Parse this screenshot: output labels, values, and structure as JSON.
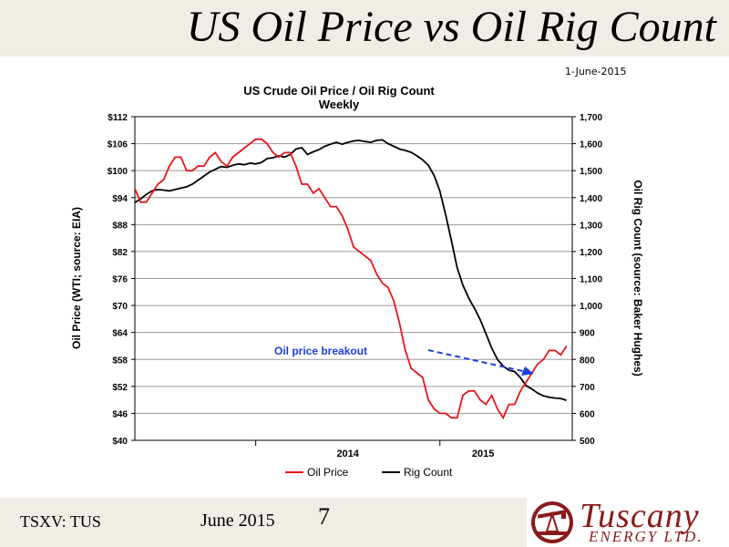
{
  "slide": {
    "title": "US Oil Price vs Oil Rig Count",
    "date": "1-June-2015",
    "footer_ticker": "TSXV: TUS",
    "footer_date": "June 2015",
    "page_number": "7",
    "logo_name": "Tuscany",
    "logo_sub": "ENERGY LTD."
  },
  "colors": {
    "oil": "#e8141b",
    "rig": "#000000",
    "arrow": "#1a3fdb",
    "annotation": "#1a3fdb",
    "band": "#f2ece6",
    "logo": "#8a1a1a"
  },
  "chart_data": {
    "type": "line",
    "title": "US Crude Oil Price / Oil Rig Count",
    "subtitle": "Weekly",
    "ylabel": "Oil Price (WTI; source: EIA)",
    "y2label": "Oil Rig Count (source: Baker Hughes)",
    "xlabel": "",
    "x_tick_labels": [
      "2014",
      "2015"
    ],
    "x_range": [
      0,
      76
    ],
    "x_year_boundaries": [
      21,
      53
    ],
    "ylim": [
      40,
      112
    ],
    "y2lim": [
      500,
      1700
    ],
    "y_ticks": [
      "$40",
      "$46",
      "$52",
      "$58",
      "$64",
      "$70",
      "$76",
      "$82",
      "$88",
      "$94",
      "$100",
      "$106",
      "$112"
    ],
    "y2_ticks": [
      "500",
      "600",
      "700",
      "800",
      "900",
      "1,000",
      "1,100",
      "1,200",
      "1,300",
      "1,400",
      "1,500",
      "1,600",
      "1,700"
    ],
    "grid": true,
    "legend_position": "bottom",
    "annotation": "Oil price breakout",
    "series": [
      {
        "name": "Oil Price",
        "axis": "left",
        "values": [
          96,
          93,
          93,
          95,
          97,
          98,
          101,
          103,
          103,
          100,
          100,
          101,
          101,
          103,
          104,
          102,
          101,
          103,
          104,
          105,
          106,
          107,
          107,
          106,
          104,
          103,
          104,
          104,
          101,
          97,
          97,
          95,
          96,
          94,
          92,
          92,
          90,
          87,
          83,
          82,
          81,
          80,
          77,
          75,
          74,
          71,
          66,
          60,
          56,
          55,
          54,
          49,
          47,
          46,
          46,
          45,
          45,
          50,
          51,
          51,
          49,
          48,
          50,
          47,
          45,
          48,
          48,
          51,
          53,
          55,
          57,
          58,
          60,
          60,
          59,
          61
        ]
      },
      {
        "name": "Rig Count",
        "axis": "right",
        "values": [
          1382,
          1395,
          1412,
          1425,
          1430,
          1428,
          1425,
          1430,
          1435,
          1440,
          1450,
          1465,
          1480,
          1495,
          1505,
          1515,
          1512,
          1520,
          1525,
          1522,
          1528,
          1525,
          1530,
          1545,
          1548,
          1555,
          1550,
          1560,
          1580,
          1585,
          1560,
          1570,
          1578,
          1590,
          1598,
          1605,
          1598,
          1605,
          1610,
          1612,
          1608,
          1605,
          1612,
          1614,
          1600,
          1590,
          1580,
          1575,
          1568,
          1555,
          1540,
          1520,
          1482,
          1424,
          1336,
          1240,
          1140,
          1075,
          1028,
          990,
          948,
          895,
          842,
          800,
          775,
          760,
          755,
          732,
          702,
          690,
          675,
          665,
          660,
          657,
          655,
          648
        ]
      }
    ]
  }
}
